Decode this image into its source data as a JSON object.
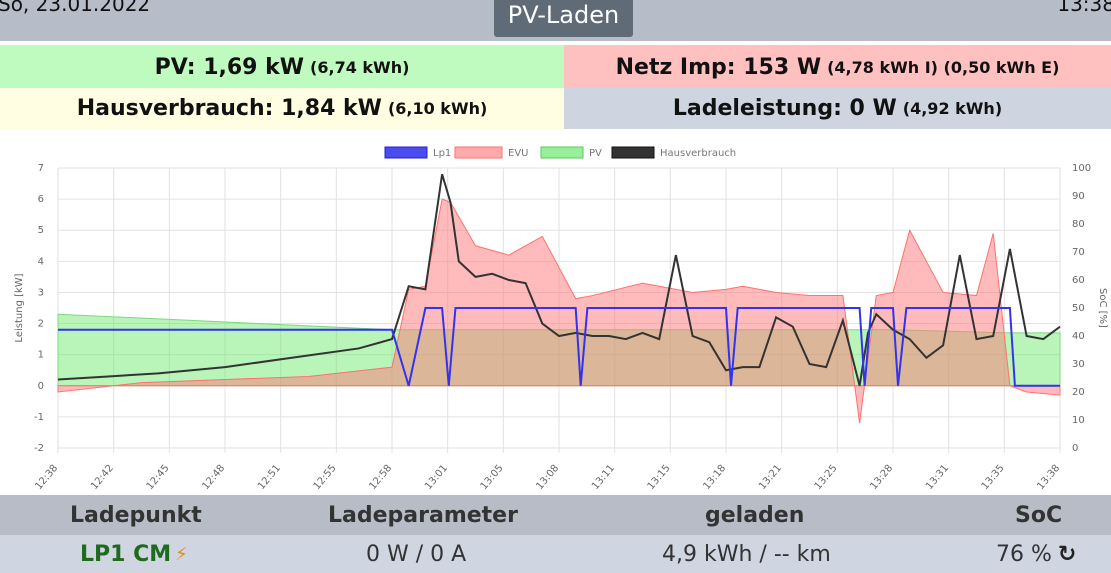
{
  "header": {
    "date": "So, 23.01.2022",
    "time": "13:38",
    "title": "PV-Laden"
  },
  "stats": {
    "pv_label": "PV: 1,69 kW",
    "pv_sub": "(6,74 kWh)",
    "grid_label": "Netz Imp: 153 W",
    "grid_sub": "(4,78 kWh I) (0,50 kWh E)",
    "house_label": "Hausverbrauch: 1,84 kW",
    "house_sub": "(6,10 kWh)",
    "charge_label": "Ladeleistung: 0 W",
    "charge_sub": "(4,92 kWh)"
  },
  "chart_data": {
    "type": "line",
    "ylabel": "Leistung [kW]",
    "y2label": "SoC [%]",
    "ylim": [
      -2,
      7
    ],
    "y2lim": [
      0,
      100
    ],
    "yticks": [
      "-2",
      "-1",
      "0",
      "1",
      "2",
      "3",
      "4",
      "5",
      "6",
      "7"
    ],
    "y2ticks": [
      "0",
      "10",
      "20",
      "30",
      "40",
      "50",
      "60",
      "70",
      "80",
      "90",
      "100"
    ],
    "xlabels": [
      "12:38",
      "12:42",
      "12:45",
      "12:48",
      "12:51",
      "12:55",
      "12:58",
      "13:01",
      "13:05",
      "13:08",
      "13:11",
      "13:15",
      "13:18",
      "13:21",
      "13:25",
      "13:28",
      "13:31",
      "13:35",
      "13:38"
    ],
    "grid": true,
    "legend_position": "top",
    "series": [
      {
        "name": "Lp1",
        "color": "#3333ee",
        "x": [
          0,
          20,
          21,
          22,
          23,
          23.4,
          23.8,
          31,
          31.3,
          31.7,
          40,
          40.3,
          40.7,
          48,
          48.3,
          48.7,
          50,
          50.3,
          50.8,
          57,
          57.3,
          60
        ],
        "y": [
          1.8,
          1.8,
          0.0,
          2.5,
          2.5,
          0.0,
          2.5,
          2.5,
          0.0,
          2.5,
          2.5,
          0.0,
          2.5,
          2.5,
          0.0,
          2.5,
          2.5,
          0.0,
          2.5,
          2.5,
          0.0,
          0.0
        ]
      },
      {
        "name": "EVU",
        "color": "#ff8080",
        "x": [
          0,
          5,
          10,
          15,
          20,
          21,
          22,
          23,
          23.5,
          25,
          27,
          29,
          31,
          32,
          35,
          38,
          40,
          41,
          43,
          45,
          47,
          48,
          49,
          50,
          51,
          53,
          55,
          56,
          57,
          58,
          60
        ],
        "y": [
          -0.2,
          0.1,
          0.2,
          0.3,
          0.6,
          3.1,
          3.2,
          6.0,
          5.9,
          4.5,
          4.2,
          4.8,
          2.8,
          2.9,
          3.3,
          3.0,
          3.1,
          3.2,
          3.0,
          2.9,
          2.9,
          -1.2,
          2.9,
          3.0,
          5.0,
          3.0,
          2.9,
          4.9,
          0.0,
          -0.2,
          -0.3
        ]
      },
      {
        "name": "PV",
        "color": "#88ee88",
        "x": [
          0,
          20,
          30,
          40,
          50,
          57,
          60
        ],
        "y": [
          2.3,
          1.8,
          1.8,
          1.8,
          1.8,
          1.7,
          1.7
        ]
      },
      {
        "name": "Hausverbrauch",
        "color": "#333333",
        "x": [
          0,
          3,
          6,
          10,
          14,
          18,
          20,
          21,
          22,
          23,
          23.5,
          24,
          25,
          26,
          27,
          28,
          29,
          30,
          31,
          32,
          33,
          34,
          35,
          36,
          37,
          38,
          39,
          40,
          41,
          42,
          43,
          44,
          45,
          46,
          47,
          48,
          48.5,
          49,
          50,
          51,
          52,
          53,
          54,
          55,
          56,
          57,
          58,
          59,
          60
        ],
        "y": [
          0.2,
          0.3,
          0.4,
          0.6,
          0.9,
          1.2,
          1.5,
          3.2,
          3.1,
          6.8,
          5.9,
          4.0,
          3.5,
          3.6,
          3.4,
          3.3,
          2.0,
          1.6,
          1.7,
          1.6,
          1.6,
          1.5,
          1.7,
          1.5,
          4.2,
          1.6,
          1.4,
          0.5,
          0.6,
          0.6,
          2.2,
          1.9,
          0.7,
          0.6,
          2.1,
          0.0,
          1.7,
          2.3,
          1.8,
          1.5,
          0.9,
          1.3,
          4.2,
          1.5,
          1.6,
          4.4,
          1.6,
          1.5,
          1.9
        ]
      }
    ]
  },
  "table": {
    "headers": [
      "Ladepunkt",
      "Ladeparameter",
      "geladen",
      "SoC"
    ],
    "row": {
      "name": "LP1 CM",
      "params": "0 W / 0 A",
      "charged": "4,9 kWh / -- km",
      "soc": "76 %"
    }
  },
  "icons": {
    "plug": "plug-icon",
    "refresh": "refresh-icon"
  }
}
